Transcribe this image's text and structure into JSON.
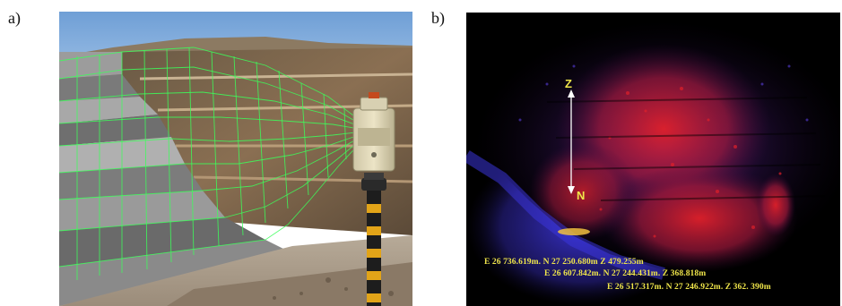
{
  "panels": {
    "a": {
      "label": "a)"
    },
    "b": {
      "label": "b)",
      "axis_z": "Z",
      "axis_n": "N",
      "coordinates": [
        "E 26 736.619m. N 27 250.680m Z 479.255m",
        "E 26 607.842m. N 27 244.431m. Z 368.818m",
        "E 26 517.317m. N 27 246.922m. Z 362. 390m"
      ]
    }
  },
  "colors": {
    "sky": "#8fb9e3",
    "mesh": "#3cff5a",
    "cloud_red": "#e0202a",
    "cloud_blue": "#3a34d8",
    "text_yellow": "#f0e64a"
  }
}
